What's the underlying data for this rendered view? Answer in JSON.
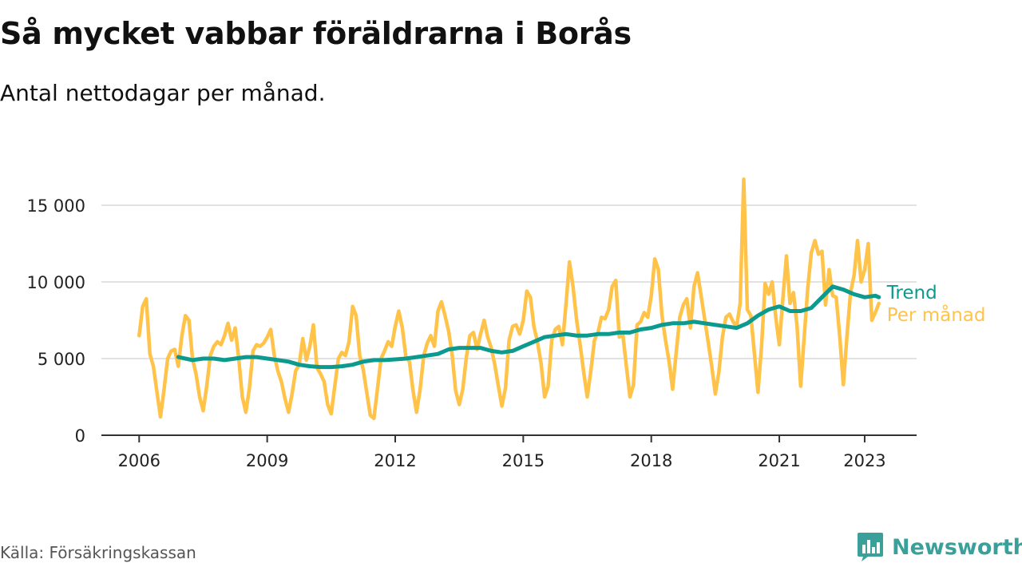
{
  "title": "Så mycket vabbar föräldrarna i Borås",
  "subtitle": "Antal nettodagar per månad.",
  "source": "Källa: Försäkringskassan",
  "brand": {
    "name": "Newsworthy",
    "logo_icon": "bar-chart-logo-icon"
  },
  "colors": {
    "monthly": "#ffc34a",
    "trend": "#0c9a8e",
    "grid": "#d9d9d9",
    "axis": "#333333"
  },
  "chart_data": {
    "type": "line",
    "x_unit": "year (decimal)",
    "xticks": [
      2006,
      2009,
      2012,
      2015,
      2018,
      2021,
      2023
    ],
    "xtick_labels": [
      "2006",
      "2009",
      "2012",
      "2015",
      "2018",
      "2021",
      "2023"
    ],
    "yticks": [
      0,
      5000,
      10000,
      15000
    ],
    "ytick_labels": [
      "0",
      "5 000",
      "10 000",
      "15 000"
    ],
    "ylim": [
      0,
      15000
    ],
    "grid": true,
    "legend": "direct labels at line ends",
    "series": [
      {
        "name": "Per månad",
        "color": "#ffc34a",
        "x": [
          2006.0,
          2006.083,
          2006.167,
          2006.25,
          2006.333,
          2006.417,
          2006.5,
          2006.583,
          2006.667,
          2006.75,
          2006.833,
          2006.917,
          2007.0,
          2007.083,
          2007.167,
          2007.25,
          2007.333,
          2007.417,
          2007.5,
          2007.583,
          2007.667,
          2007.75,
          2007.833,
          2007.917,
          2008.0,
          2008.083,
          2008.167,
          2008.25,
          2008.333,
          2008.417,
          2008.5,
          2008.583,
          2008.667,
          2008.75,
          2008.833,
          2008.917,
          2009.0,
          2009.083,
          2009.167,
          2009.25,
          2009.333,
          2009.417,
          2009.5,
          2009.583,
          2009.667,
          2009.75,
          2009.833,
          2009.917,
          2010.0,
          2010.083,
          2010.167,
          2010.25,
          2010.333,
          2010.417,
          2010.5,
          2010.583,
          2010.667,
          2010.75,
          2010.833,
          2010.917,
          2011.0,
          2011.083,
          2011.167,
          2011.25,
          2011.333,
          2011.417,
          2011.5,
          2011.583,
          2011.667,
          2011.75,
          2011.833,
          2011.917,
          2012.0,
          2012.083,
          2012.167,
          2012.25,
          2012.333,
          2012.417,
          2012.5,
          2012.583,
          2012.667,
          2012.75,
          2012.833,
          2012.917,
          2013.0,
          2013.083,
          2013.167,
          2013.25,
          2013.333,
          2013.417,
          2013.5,
          2013.583,
          2013.667,
          2013.75,
          2013.833,
          2013.917,
          2014.0,
          2014.083,
          2014.167,
          2014.25,
          2014.333,
          2014.417,
          2014.5,
          2014.583,
          2014.667,
          2014.75,
          2014.833,
          2014.917,
          2015.0,
          2015.083,
          2015.167,
          2015.25,
          2015.333,
          2015.417,
          2015.5,
          2015.583,
          2015.667,
          2015.75,
          2015.833,
          2015.917,
          2016.0,
          2016.083,
          2016.167,
          2016.25,
          2016.333,
          2016.417,
          2016.5,
          2016.583,
          2016.667,
          2016.75,
          2016.833,
          2016.917,
          2017.0,
          2017.083,
          2017.167,
          2017.25,
          2017.333,
          2017.417,
          2017.5,
          2017.583,
          2017.667,
          2017.75,
          2017.833,
          2017.917,
          2018.0,
          2018.083,
          2018.167,
          2018.25,
          2018.333,
          2018.417,
          2018.5,
          2018.583,
          2018.667,
          2018.75,
          2018.833,
          2018.917,
          2019.0,
          2019.083,
          2019.167,
          2019.25,
          2019.333,
          2019.417,
          2019.5,
          2019.583,
          2019.667,
          2019.75,
          2019.833,
          2019.917,
          2020.0,
          2020.083,
          2020.167,
          2020.25,
          2020.333,
          2020.417,
          2020.5,
          2020.583,
          2020.667,
          2020.75,
          2020.833,
          2020.917,
          2021.0,
          2021.083,
          2021.167,
          2021.25,
          2021.333,
          2021.417,
          2021.5,
          2021.583,
          2021.667,
          2021.75,
          2021.833,
          2021.917,
          2022.0,
          2022.083,
          2022.167,
          2022.25,
          2022.333,
          2022.417,
          2022.5,
          2022.583,
          2022.667,
          2022.75,
          2022.833,
          2022.917,
          2023.0,
          2023.083,
          2023.167,
          2023.25,
          2023.333
        ],
        "y": [
          6500,
          8400,
          8900,
          5300,
          4500,
          2800,
          1200,
          3000,
          5000,
          5500,
          5600,
          4500,
          6500,
          7800,
          7500,
          5000,
          4000,
          2500,
          1600,
          3200,
          5200,
          5800,
          6100,
          5900,
          6500,
          7300,
          6200,
          7000,
          5000,
          2500,
          1500,
          3100,
          5500,
          5900,
          5800,
          6000,
          6400,
          6900,
          5200,
          4200,
          3500,
          2400,
          1500,
          2700,
          4200,
          4600,
          6300,
          4900,
          5800,
          7200,
          4400,
          4000,
          3500,
          2000,
          1400,
          3200,
          5000,
          5400,
          5200,
          6100,
          8400,
          7800,
          5200,
          4300,
          2800,
          1300,
          1100,
          3000,
          5000,
          5500,
          6100,
          5800,
          7100,
          8100,
          7000,
          5100,
          4800,
          2900,
          1500,
          3000,
          5200,
          6000,
          6500,
          5800,
          8100,
          8700,
          7800,
          6800,
          5300,
          2900,
          2000,
          3000,
          5100,
          6500,
          6700,
          5600,
          6600,
          7500,
          6400,
          5700,
          4600,
          3200,
          1900,
          3100,
          6200,
          7100,
          7200,
          6600,
          7500,
          9400,
          9000,
          7100,
          6100,
          4700,
          2500,
          3200,
          6200,
          6900,
          7100,
          5900,
          8500,
          11300,
          9700,
          7500,
          5900,
          4100,
          2500,
          4200,
          6200,
          6700,
          7700,
          7600,
          8200,
          9700,
          10100,
          6400,
          6600,
          4500,
          2500,
          3300,
          7200,
          7400,
          8000,
          7700,
          9100,
          11500,
          10800,
          7800,
          6200,
          4800,
          3000,
          5400,
          7700,
          8500,
          8900,
          7000,
          9700,
          10600,
          9100,
          7600,
          6100,
          4500,
          2700,
          4100,
          6400,
          7700,
          7900,
          7400,
          7100,
          8600,
          16700,
          8200,
          7800,
          5300,
          2800,
          5800,
          9900,
          9200,
          10000,
          7700,
          5900,
          8900,
          11700,
          8600,
          9300,
          7100,
          3200,
          6400,
          9600,
          11900,
          12700,
          11800,
          12000,
          8500,
          10800,
          9100,
          9000,
          6400,
          3300,
          6400,
          9300,
          10400,
          12700,
          10000,
          10800,
          12500,
          7500,
          8000,
          8600
        ]
      },
      {
        "name": "Trend",
        "color": "#0c9a8e",
        "x": [
          2006.917,
          2007.083,
          2007.25,
          2007.5,
          2007.75,
          2008.0,
          2008.25,
          2008.5,
          2008.75,
          2009.0,
          2009.25,
          2009.5,
          2009.75,
          2010.0,
          2010.25,
          2010.5,
          2010.75,
          2011.0,
          2011.25,
          2011.5,
          2011.75,
          2012.0,
          2012.25,
          2012.5,
          2012.75,
          2013.0,
          2013.25,
          2013.5,
          2013.75,
          2014.0,
          2014.25,
          2014.5,
          2014.75,
          2015.0,
          2015.25,
          2015.5,
          2015.75,
          2016.0,
          2016.25,
          2016.5,
          2016.75,
          2017.0,
          2017.25,
          2017.5,
          2017.75,
          2018.0,
          2018.25,
          2018.5,
          2018.75,
          2019.0,
          2019.25,
          2019.5,
          2019.75,
          2020.0,
          2020.25,
          2020.5,
          2020.75,
          2021.0,
          2021.25,
          2021.5,
          2021.75,
          2022.0,
          2022.25,
          2022.5,
          2022.75,
          2023.0,
          2023.25,
          2023.333
        ],
        "y": [
          5100,
          5000,
          4900,
          5000,
          5000,
          4900,
          5000,
          5100,
          5100,
          5000,
          4900,
          4800,
          4600,
          4500,
          4450,
          4450,
          4500,
          4600,
          4800,
          4900,
          4900,
          4950,
          5000,
          5100,
          5200,
          5300,
          5600,
          5700,
          5700,
          5700,
          5500,
          5400,
          5500,
          5800,
          6100,
          6400,
          6500,
          6600,
          6500,
          6500,
          6600,
          6600,
          6700,
          6700,
          6900,
          7000,
          7200,
          7300,
          7300,
          7400,
          7300,
          7200,
          7100,
          7000,
          7300,
          7800,
          8200,
          8400,
          8100,
          8100,
          8300,
          9000,
          9700,
          9500,
          9200,
          9000,
          9100,
          9000
        ]
      }
    ]
  }
}
